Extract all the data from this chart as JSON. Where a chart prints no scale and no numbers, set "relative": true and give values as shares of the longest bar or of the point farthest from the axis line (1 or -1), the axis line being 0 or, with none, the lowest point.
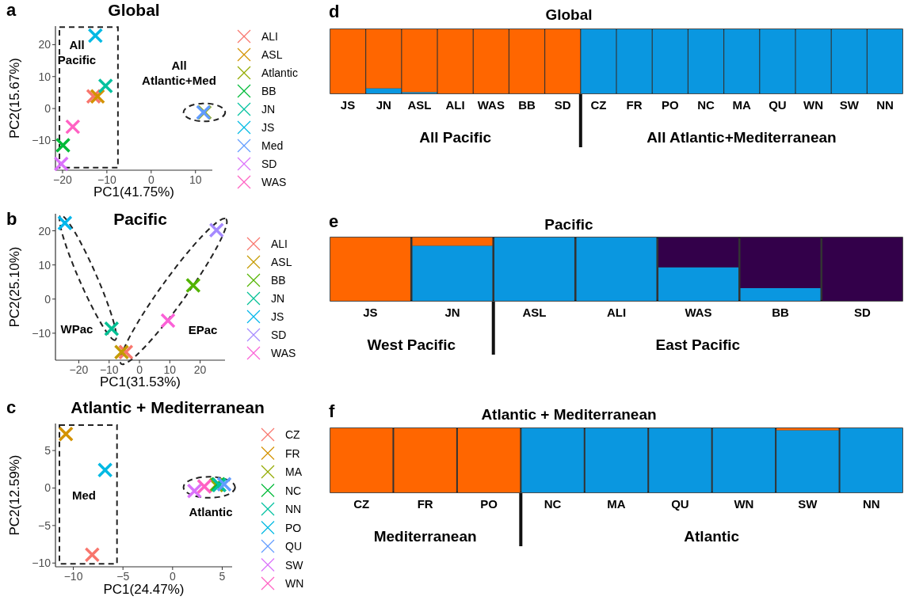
{
  "chart_data": [
    {
      "type": "scatter",
      "title": "Global",
      "xlabel": "PC1(41.75%)",
      "ylabel": "PC2(15.67%)",
      "xlim": [
        -21.6,
        13.8
      ],
      "ylim": [
        -19.3,
        25.8
      ],
      "xticks": [
        -20,
        -10,
        0,
        10
      ],
      "yticks": [
        -10,
        0,
        10,
        20
      ],
      "grid": false,
      "legend": "right",
      "marker": "cross",
      "annotations": [
        "a",
        "All Pacific",
        "All Atlantic+Med"
      ],
      "series": [
        {
          "name": "ALI",
          "color": "#f8766d",
          "x": [
            -13
          ],
          "values": [
            3.8
          ]
        },
        {
          "name": "ASL",
          "color": "#d39200",
          "x": [
            -12.1
          ],
          "values": [
            3.8
          ]
        },
        {
          "name": "Atlantic",
          "color": "#93aa00",
          "x": [
            12
          ],
          "values": [
            -1.2
          ]
        },
        {
          "name": "BB",
          "color": "#00ba38",
          "x": [
            -19.9
          ],
          "values": [
            -11.5
          ]
        },
        {
          "name": "JN",
          "color": "#00c19f",
          "x": [
            -10.3
          ],
          "values": [
            7.1
          ]
        },
        {
          "name": "JS",
          "color": "#00b9e3",
          "x": [
            -12.6
          ],
          "values": [
            22.8
          ]
        },
        {
          "name": "Med",
          "color": "#619cff",
          "x": [
            11.8
          ],
          "values": [
            -1.2
          ]
        },
        {
          "name": "SD",
          "color": "#db72fb",
          "x": [
            -20.3
          ],
          "values": [
            -17.3
          ]
        },
        {
          "name": "WAS",
          "color": "#ff61c3",
          "x": [
            -17.7
          ],
          "values": [
            -5.7
          ]
        }
      ]
    },
    {
      "type": "scatter",
      "title": "Pacific",
      "xlabel": "PC1(31.53%)",
      "ylabel": "PC2(25.10%)",
      "xlim": [
        -27.7,
        28.2
      ],
      "ylim": [
        -17.9,
        25
      ],
      "xticks": [
        -20,
        -10,
        0,
        10,
        20
      ],
      "yticks": [
        -10,
        0,
        10,
        20
      ],
      "grid": false,
      "legend": "right",
      "marker": "cross",
      "annotations": [
        "b",
        "WPac",
        "EPac"
      ],
      "series": [
        {
          "name": "ALI",
          "color": "#f8766d",
          "x": [
            -4.5
          ],
          "values": [
            -15.5
          ]
        },
        {
          "name": "ASL",
          "color": "#c49a00",
          "x": [
            -5.9
          ],
          "values": [
            -15.5
          ]
        },
        {
          "name": "BB",
          "color": "#53b400",
          "x": [
            17.7
          ],
          "values": [
            4
          ]
        },
        {
          "name": "JN",
          "color": "#00c094",
          "x": [
            -9.2
          ],
          "values": [
            -8.7
          ]
        },
        {
          "name": "JS",
          "color": "#00b6eb",
          "x": [
            -24.6
          ],
          "values": [
            22.3
          ]
        },
        {
          "name": "SD",
          "color": "#a58aff",
          "x": [
            25.4
          ],
          "values": [
            20.2
          ]
        },
        {
          "name": "WAS",
          "color": "#fb61d7",
          "x": [
            9.4
          ],
          "values": [
            -6.3
          ]
        }
      ]
    },
    {
      "type": "scatter",
      "title": "Atlantic + Mediterranean",
      "xlabel": "PC1(24.47%)",
      "ylabel": "PC2(12.59%)",
      "xlim": [
        -11.8,
        6
      ],
      "ylim": [
        -10.5,
        8.6
      ],
      "xticks": [
        -10,
        -5,
        0,
        5
      ],
      "yticks": [
        -10,
        -5,
        0,
        5
      ],
      "grid": false,
      "legend": "right",
      "marker": "cross",
      "annotations": [
        "c",
        "Med",
        "Atlantic"
      ],
      "series": [
        {
          "name": "CZ",
          "color": "#f8766d",
          "x": [
            -8.1
          ],
          "values": [
            -8.9
          ]
        },
        {
          "name": "FR",
          "color": "#d39200",
          "x": [
            -10.75
          ],
          "values": [
            7.2
          ]
        },
        {
          "name": "MA",
          "color": "#93aa00",
          "x": [
            4.4
          ],
          "values": [
            0.4
          ]
        },
        {
          "name": "NC",
          "color": "#00ba38",
          "x": [
            4.6
          ],
          "values": [
            0.5
          ]
        },
        {
          "name": "NN",
          "color": "#00c19f",
          "x": [
            4.7
          ],
          "values": [
            0.4
          ]
        },
        {
          "name": "PO",
          "color": "#00b9e3",
          "x": [
            -6.8
          ],
          "values": [
            2.4
          ]
        },
        {
          "name": "QU",
          "color": "#619cff",
          "x": [
            5.2
          ],
          "values": [
            0.5
          ]
        },
        {
          "name": "SW",
          "color": "#db72fb",
          "x": [
            2.2
          ],
          "values": [
            -0.4
          ]
        },
        {
          "name": "WN",
          "color": "#ff61c3",
          "x": [
            3.2
          ],
          "values": [
            0.2
          ]
        }
      ]
    },
    {
      "type": "bar",
      "title": "Global",
      "stacked": true,
      "relative": true,
      "annotations": [
        "d",
        "All Pacific",
        "All Atlantic+Mediterranean"
      ],
      "categories": [
        "JS",
        "JN",
        "ASL",
        "ALI",
        "WAS",
        "BB",
        "SD",
        "CZ",
        "FR",
        "PO",
        "NC",
        "MA",
        "QU",
        "WN",
        "SW",
        "NN"
      ],
      "series": [
        {
          "color": "#0a97e0",
          "values": [
            0,
            0.08,
            0.02,
            0,
            0,
            0,
            0,
            1,
            1,
            1,
            1,
            1,
            1,
            1,
            1,
            1
          ]
        },
        {
          "color": "#ff6600",
          "values": [
            1,
            0.92,
            0.98,
            1,
            1,
            1,
            1,
            0,
            0,
            0,
            0,
            0,
            0,
            0,
            0,
            0
          ]
        }
      ]
    },
    {
      "type": "bar",
      "title": "Pacific",
      "stacked": true,
      "relative": true,
      "annotations": [
        "e",
        "West Pacific",
        "East Pacific"
      ],
      "categories": [
        "JS",
        "JN",
        "ASL",
        "ALI",
        "WAS",
        "BB",
        "SD"
      ],
      "series": [
        {
          "color": "#0a97e0",
          "values": [
            0,
            0.87,
            1,
            1,
            0.53,
            0.2,
            0
          ]
        },
        {
          "color": "#ff6600",
          "values": [
            1,
            0.13,
            0,
            0,
            0,
            0,
            0
          ]
        },
        {
          "color": "#33004a",
          "values": [
            0,
            0,
            0,
            0,
            0.47,
            0.8,
            1
          ]
        }
      ]
    },
    {
      "type": "bar",
      "title": "Atlantic + Mediterranean",
      "stacked": true,
      "relative": true,
      "annotations": [
        "f",
        "Mediterranean",
        "Atlantic"
      ],
      "categories": [
        "CZ",
        "FR",
        "PO",
        "NC",
        "MA",
        "QU",
        "WN",
        "SW",
        "NN"
      ],
      "series": [
        {
          "color": "#0a97e0",
          "values": [
            0,
            0,
            0,
            1,
            1,
            1,
            1,
            0.97,
            1
          ]
        },
        {
          "color": "#ff6600",
          "values": [
            1,
            1,
            1,
            0,
            0,
            0,
            0,
            0.03,
            0
          ]
        }
      ]
    }
  ]
}
